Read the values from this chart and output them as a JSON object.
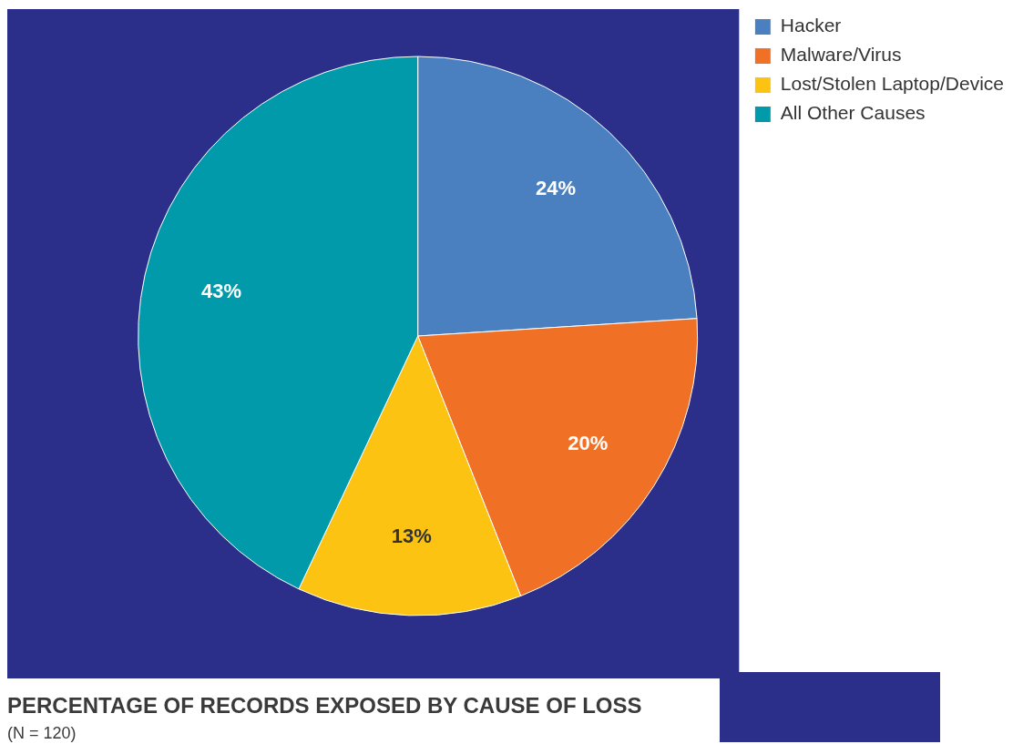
{
  "chart_data": {
    "type": "pie",
    "title": "PERCENTAGE OF RECORDS EXPOSED BY CAUSE OF LOSS",
    "subtitle": "(N = 120)",
    "categories": [
      "Hacker",
      "Malware/Virus",
      "Lost/Stolen Laptop/Device",
      "All Other Causes"
    ],
    "values": [
      24,
      20,
      13,
      43
    ],
    "colors": [
      "#4a80c0",
      "#f07025",
      "#fcc312",
      "#009aab"
    ],
    "value_labels": [
      "24%",
      "20%",
      "13%",
      "43%"
    ],
    "legend": "top right"
  }
}
